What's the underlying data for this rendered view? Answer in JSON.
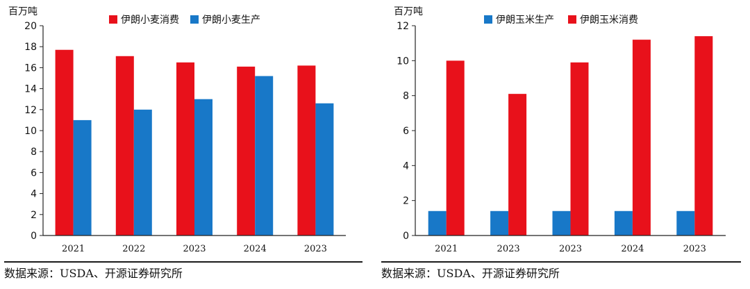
{
  "source_left": "数据来源：USDA、开源证券研究所",
  "source_right": "数据来源：USDA、开源证券研究所",
  "chart_data": [
    {
      "type": "bar",
      "unit": "百万吨",
      "categories": [
        "2021",
        "2022",
        "2023",
        "2024",
        "2023"
      ],
      "series": [
        {
          "name": "伊朗小麦消费",
          "color": "#e8111b",
          "values": [
            17.7,
            17.1,
            16.5,
            16.1,
            16.2
          ]
        },
        {
          "name": "伊朗小麦生产",
          "color": "#1878c8",
          "values": [
            11.0,
            12.0,
            13.0,
            15.2,
            12.6
          ]
        }
      ],
      "ylim": [
        0,
        20
      ],
      "yticks": [
        0,
        2,
        4,
        6,
        8,
        10,
        12,
        14,
        16,
        18,
        20
      ],
      "legend": "top"
    },
    {
      "type": "bar",
      "unit": "百万吨",
      "categories": [
        "2021",
        "2023",
        "2023",
        "2024",
        "2023"
      ],
      "series": [
        {
          "name": "伊朗玉米生产",
          "color": "#1878c8",
          "values": [
            1.4,
            1.4,
            1.4,
            1.4,
            1.4
          ]
        },
        {
          "name": "伊朗玉米消费",
          "color": "#e8111b",
          "values": [
            10.0,
            8.1,
            9.9,
            11.2,
            11.4
          ]
        }
      ],
      "ylim": [
        0,
        12
      ],
      "yticks": [
        0,
        2,
        4,
        6,
        8,
        10,
        12
      ],
      "legend": "top"
    }
  ]
}
